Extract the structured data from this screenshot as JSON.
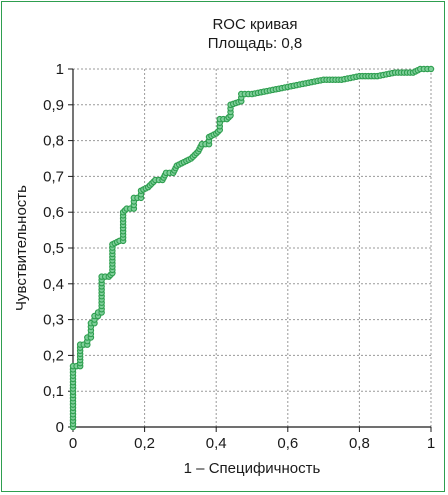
{
  "chart_data": {
    "type": "line",
    "title": "ROC кривая",
    "subtitle": "Площадь: 0,8",
    "xlabel": "1 – Специфичность",
    "ylabel": "Чувствительность",
    "xlim": [
      0,
      1
    ],
    "ylim": [
      0,
      1
    ],
    "grid": true,
    "legend": "none",
    "x_tick_labels": [
      "0",
      "0,2",
      "0,4",
      "0,6",
      "0,8",
      "1"
    ],
    "y_tick_labels": [
      "0",
      "0,1",
      "0,2",
      "0,3",
      "0,4",
      "0,5",
      "0,6",
      "0,7",
      "0,8",
      "0,9",
      "1"
    ],
    "colors": {
      "line": "#2e9e4f",
      "marker_fill": "#7fcf9a",
      "frame": "#2e9e4f"
    },
    "series": [
      {
        "points": [
          [
            0,
            0
          ],
          [
            0,
            0.17
          ],
          [
            0.02,
            0.17
          ],
          [
            0.02,
            0.23
          ],
          [
            0.04,
            0.23
          ],
          [
            0.04,
            0.25
          ],
          [
            0.05,
            0.25
          ],
          [
            0.05,
            0.29
          ],
          [
            0.06,
            0.29
          ],
          [
            0.06,
            0.31
          ],
          [
            0.07,
            0.31
          ],
          [
            0.07,
            0.32
          ],
          [
            0.08,
            0.32
          ],
          [
            0.08,
            0.42
          ],
          [
            0.1,
            0.42
          ],
          [
            0.11,
            0.43
          ],
          [
            0.11,
            0.51
          ],
          [
            0.13,
            0.52
          ],
          [
            0.14,
            0.52
          ],
          [
            0.14,
            0.6
          ],
          [
            0.15,
            0.61
          ],
          [
            0.17,
            0.61
          ],
          [
            0.17,
            0.64
          ],
          [
            0.19,
            0.64
          ],
          [
            0.19,
            0.66
          ],
          [
            0.21,
            0.67
          ],
          [
            0.22,
            0.68
          ],
          [
            0.23,
            0.69
          ],
          [
            0.25,
            0.69
          ],
          [
            0.26,
            0.71
          ],
          [
            0.28,
            0.71
          ],
          [
            0.29,
            0.73
          ],
          [
            0.31,
            0.74
          ],
          [
            0.33,
            0.75
          ],
          [
            0.34,
            0.76
          ],
          [
            0.35,
            0.77
          ],
          [
            0.36,
            0.79
          ],
          [
            0.38,
            0.79
          ],
          [
            0.38,
            0.81
          ],
          [
            0.4,
            0.82
          ],
          [
            0.41,
            0.83
          ],
          [
            0.41,
            0.86
          ],
          [
            0.43,
            0.86
          ],
          [
            0.44,
            0.87
          ],
          [
            0.44,
            0.9
          ],
          [
            0.47,
            0.91
          ],
          [
            0.47,
            0.93
          ],
          [
            0.5,
            0.93
          ],
          [
            0.55,
            0.94
          ],
          [
            0.6,
            0.95
          ],
          [
            0.65,
            0.96
          ],
          [
            0.7,
            0.97
          ],
          [
            0.75,
            0.97
          ],
          [
            0.8,
            0.98
          ],
          [
            0.85,
            0.98
          ],
          [
            0.9,
            0.99
          ],
          [
            0.95,
            0.99
          ],
          [
            0.97,
            1.0
          ],
          [
            1.0,
            1.0
          ]
        ]
      }
    ]
  }
}
